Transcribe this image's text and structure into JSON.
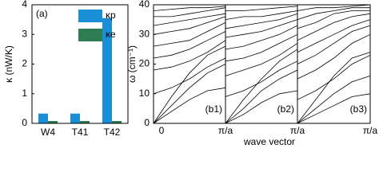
{
  "chart_data": [
    {
      "type": "bar",
      "panel_label": "(a)",
      "ylabel": "κ (nW/K)",
      "categories": [
        "W4",
        "T41",
        "T42"
      ],
      "series": [
        {
          "name": "κp",
          "color": "#1a8fd6",
          "values": [
            0.33,
            0.33,
            3.55
          ]
        },
        {
          "name": "κe",
          "color": "#2e7d52",
          "values": [
            0.08,
            0.08,
            0.08
          ]
        }
      ],
      "ylim": [
        0,
        4
      ],
      "yticks": [
        0,
        1,
        2,
        3,
        4
      ],
      "legend": "upper right"
    },
    {
      "type": "line",
      "panel_label": "(b1)",
      "ylabel": "ω (cm⁻¹)",
      "color": "#000000",
      "x": [
        0,
        0.25,
        0.5,
        0.75,
        1
      ],
      "xlim": [
        0,
        1
      ],
      "xticks": [
        {
          "value": 0,
          "label": "0"
        },
        {
          "value": 1,
          "label": "π/a"
        }
      ],
      "ylim": [
        0,
        40
      ],
      "yticks": [
        0,
        10,
        20,
        30,
        40
      ],
      "series": [
        {
          "values": [
            0,
            4,
            8,
            11,
            12
          ]
        },
        {
          "values": [
            0,
            6,
            12,
            17,
            20
          ]
        },
        {
          "values": [
            0,
            9,
            17,
            23,
            26
          ]
        },
        {
          "values": [
            10,
            12,
            15,
            19,
            22
          ]
        },
        {
          "values": [
            18,
            19,
            21,
            24,
            28
          ]
        },
        {
          "values": [
            22,
            23,
            25,
            28,
            31
          ]
        },
        {
          "values": [
            26,
            27,
            28,
            31,
            34
          ]
        },
        {
          "values": [
            30,
            31,
            32,
            34,
            36
          ]
        },
        {
          "values": [
            33,
            34,
            35,
            36,
            37
          ]
        },
        {
          "values": [
            36,
            36,
            37,
            38,
            39
          ]
        },
        {
          "values": [
            38,
            38.5,
            39,
            39,
            39.5
          ]
        }
      ]
    },
    {
      "type": "line",
      "panel_label": "(b2)",
      "xlabel": "wave vector",
      "color": "#000000",
      "x": [
        0,
        0.25,
        0.5,
        0.75,
        1
      ],
      "xlim": [
        0,
        1
      ],
      "xticks": [
        {
          "value": 1,
          "label": "π/a"
        }
      ],
      "ylim": [
        0,
        40
      ],
      "series": [
        {
          "values": [
            0,
            3,
            7,
            10,
            11
          ]
        },
        {
          "values": [
            0,
            5,
            11,
            15,
            18
          ]
        },
        {
          "values": [
            0,
            8,
            15,
            21,
            25
          ]
        },
        {
          "values": [
            9,
            11,
            14,
            18,
            21
          ]
        },
        {
          "values": [
            16,
            18,
            20,
            23,
            27
          ]
        },
        {
          "values": [
            21,
            22,
            24,
            27,
            30
          ]
        },
        {
          "values": [
            25,
            26,
            28,
            30,
            33
          ]
        },
        {
          "values": [
            29,
            30,
            31,
            33,
            35
          ]
        },
        {
          "values": [
            32,
            33,
            34,
            35,
            37
          ]
        },
        {
          "values": [
            35,
            36,
            36,
            37,
            38
          ]
        },
        {
          "values": [
            38,
            38,
            38.5,
            39,
            39.5
          ]
        }
      ]
    },
    {
      "type": "line",
      "panel_label": "(b3)",
      "color": "#000000",
      "x": [
        0,
        0.25,
        0.5,
        0.75,
        1
      ],
      "xlim": [
        0,
        1
      ],
      "xticks": [
        {
          "value": 1,
          "label": "π/a"
        }
      ],
      "ylim": [
        0,
        40
      ],
      "series": [
        {
          "values": [
            0,
            3,
            6,
            9,
            10
          ]
        },
        {
          "values": [
            0,
            5,
            10,
            14,
            16
          ]
        },
        {
          "values": [
            0,
            8,
            16,
            22,
            24
          ]
        },
        {
          "values": [
            8,
            11,
            15,
            20,
            23
          ]
        },
        {
          "values": [
            15,
            18,
            22,
            27,
            30
          ]
        },
        {
          "values": [
            20,
            23,
            27,
            31,
            33
          ]
        },
        {
          "values": [
            24,
            27,
            30,
            33,
            35
          ]
        },
        {
          "values": [
            28,
            31,
            34,
            36,
            37
          ]
        },
        {
          "values": [
            32,
            34,
            37,
            38,
            38
          ]
        },
        {
          "values": [
            35,
            37,
            38,
            39,
            39
          ]
        },
        {
          "values": [
            38,
            39,
            39,
            39.5,
            40
          ]
        }
      ]
    }
  ]
}
